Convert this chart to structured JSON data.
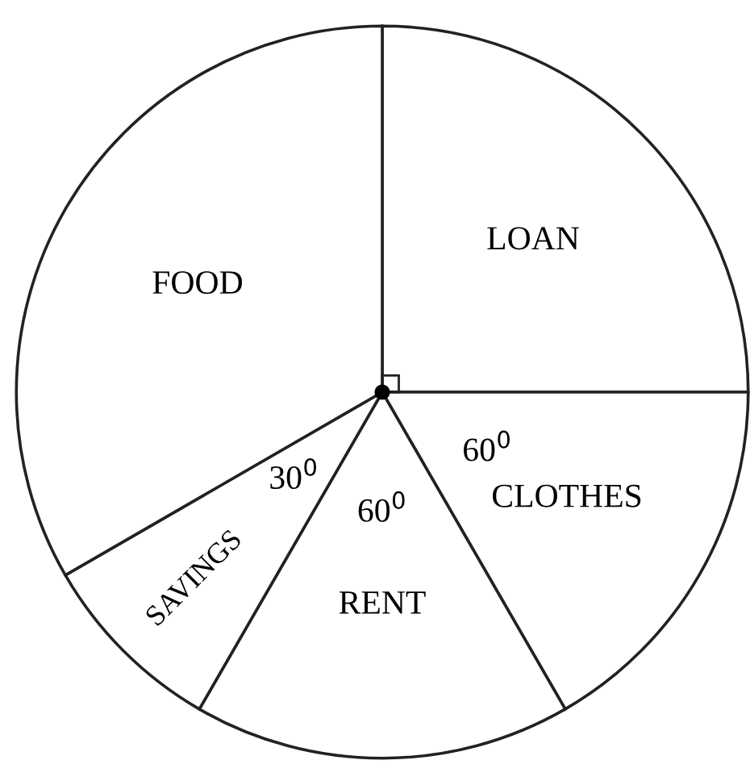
{
  "chart_data": {
    "type": "pie",
    "categories": [
      "LOAN",
      "CLOTHES",
      "RENT",
      "SAVINGS",
      "FOOD"
    ],
    "values": [
      90,
      60,
      60,
      30,
      120
    ],
    "value_labels": [
      null,
      "60$^{0}$",
      "60$^{0}$",
      "30$^{0}$",
      null
    ],
    "colors": [
      "#ffffff",
      "#ffffff",
      "#ffffff",
      "#ffffff",
      "#ffffff"
    ]
  }
}
